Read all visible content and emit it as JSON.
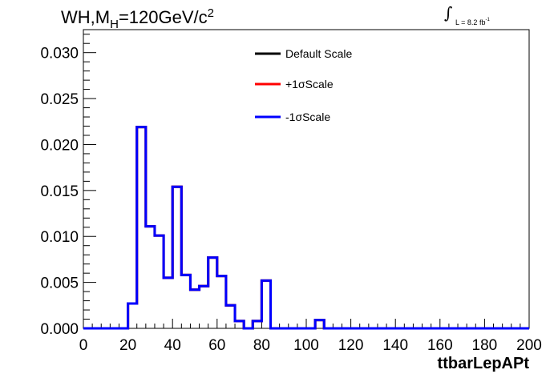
{
  "title": {
    "prefix": "WH,M",
    "sub": "H",
    "main": "=120GeV/c",
    "sup": "2"
  },
  "lumi": {
    "int_symbol": "∫",
    "text": "L = 8.2 fb",
    "sup": "-1"
  },
  "chart_data": {
    "type": "line",
    "xlabel": "ttbarLepAPt",
    "ylabel": "",
    "xlim": [
      0,
      200
    ],
    "ylim": [
      0,
      0.0325
    ],
    "x_ticks": [
      0,
      20,
      40,
      60,
      80,
      100,
      120,
      140,
      160,
      180,
      200
    ],
    "x_tick_labels": [
      "0",
      "20",
      "40",
      "60",
      "80",
      "100",
      "120",
      "140",
      "160",
      "180",
      "200"
    ],
    "y_ticks": [
      0,
      0.005,
      0.01,
      0.015,
      0.02,
      0.025,
      0.03
    ],
    "y_tick_labels": [
      "0.000",
      "0.005",
      "0.010",
      "0.015",
      "0.020",
      "0.025",
      "0.030"
    ],
    "bin_width": 4,
    "bin_edges_start": 0,
    "legend": [
      {
        "label": "Default Scale",
        "color": "#000000"
      },
      {
        "label": "+1σScale",
        "color": "#ff0000"
      },
      {
        "label": "-1σScale",
        "color": "#0000ff"
      }
    ],
    "series": [
      {
        "name": "Default Scale",
        "color": "#000000",
        "values": [
          0,
          0,
          0,
          0,
          0,
          0.0027,
          0.0219,
          0.0111,
          0.0101,
          0.0055,
          0.0154,
          0.0058,
          0.0042,
          0.0046,
          0.0077,
          0.0057,
          0.0025,
          0.0008,
          0,
          0.0008,
          0.0052,
          0,
          0,
          0,
          0,
          0,
          0.0009,
          0,
          0,
          0,
          0,
          0,
          0,
          0,
          0,
          0,
          0,
          0,
          0,
          0,
          0,
          0,
          0,
          0,
          0,
          0,
          0,
          0,
          0,
          0
        ]
      },
      {
        "name": "+1σScale",
        "color": "#ff0000",
        "values": [
          0,
          0,
          0,
          0,
          0,
          0.0027,
          0.0219,
          0.0111,
          0.0101,
          0.0055,
          0.0154,
          0.0058,
          0.0042,
          0.0046,
          0.0077,
          0.0057,
          0.0025,
          0.0008,
          0,
          0.0008,
          0.0052,
          0,
          0,
          0,
          0,
          0,
          0.0009,
          0,
          0,
          0,
          0,
          0,
          0,
          0,
          0,
          0,
          0,
          0,
          0,
          0,
          0,
          0,
          0,
          0,
          0,
          0,
          0,
          0,
          0,
          0
        ]
      },
      {
        "name": "-1σScale",
        "color": "#0000ff",
        "values": [
          0,
          0,
          0,
          0,
          0,
          0.0027,
          0.0219,
          0.0111,
          0.0101,
          0.0055,
          0.0154,
          0.0058,
          0.0042,
          0.0046,
          0.0077,
          0.0057,
          0.0025,
          0.0008,
          0,
          0.0008,
          0.0052,
          0,
          0,
          0,
          0,
          0,
          0.0009,
          0,
          0,
          0,
          0,
          0,
          0,
          0,
          0,
          0,
          0,
          0,
          0,
          0,
          0,
          0,
          0,
          0,
          0,
          0,
          0,
          0,
          0,
          0
        ]
      }
    ]
  }
}
